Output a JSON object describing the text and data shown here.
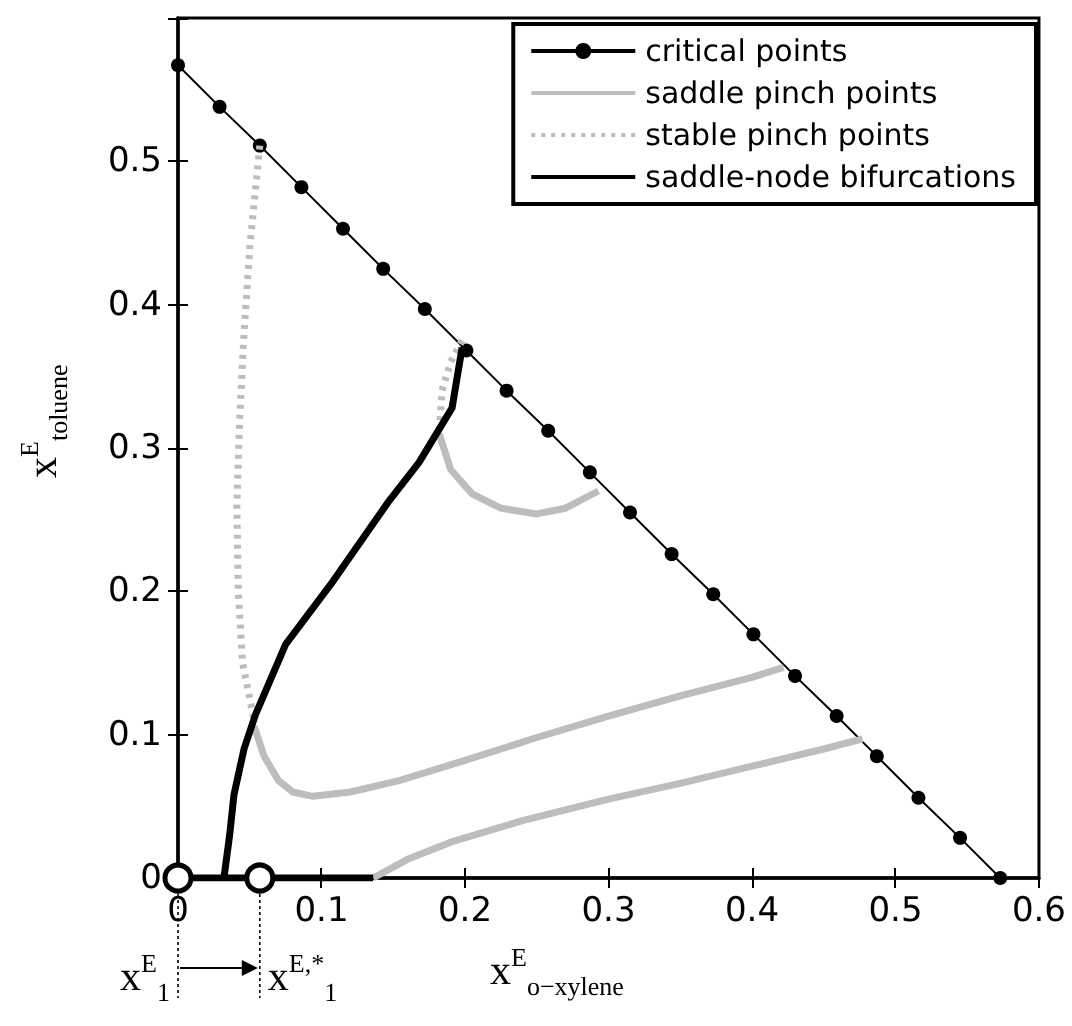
{
  "chart_data": {
    "type": "line",
    "xlabel": "x$^{E}$$_{o−xylene}$",
    "ylabel": "x$^{E}$$_{toluene}$",
    "xlim": [
      0,
      0.6
    ],
    "ylim": [
      0,
      0.6
    ],
    "xticks": [
      0,
      0.1,
      0.2,
      0.3,
      0.4,
      0.5,
      0.6
    ],
    "yticks": [
      0,
      0.1,
      0.2,
      0.3,
      0.4,
      0.5,
      {
        "value": 0.6,
        "label": null
      }
    ],
    "grid": false,
    "legend": "top right",
    "annotations": [
      {
        "text": "x$^{E}$$_{1}$",
        "x": 0,
        "y": 0
      },
      {
        "text": "x$^{E,*}$$_{1}$",
        "x": 0.057,
        "y": 0
      }
    ],
    "series": [
      {
        "name": "critical points",
        "color": "#000000",
        "marker": "circle",
        "line_style": "solid",
        "x": [
          0,
          0.029,
          0.057,
          0.086,
          0.115,
          0.143,
          0.172,
          0.201,
          0.229,
          0.258,
          0.287,
          0.315,
          0.344,
          0.373,
          0.401,
          0.43,
          0.459,
          0.487,
          0.516,
          0.545,
          0.573
        ],
        "values": [
          0.567,
          0.538,
          0.511,
          0.482,
          0.453,
          0.425,
          0.397,
          0.368,
          0.34,
          0.312,
          0.283,
          0.255,
          0.226,
          0.198,
          0.17,
          0.141,
          0.113,
          0.085,
          0.056,
          0.028,
          0
        ]
      },
      {
        "name": "saddle pinch points",
        "color": "#bdbdbd",
        "marker": "none",
        "line_style": "solid",
        "x": [
          0.182,
          0.19,
          0.205,
          0.225,
          0.25,
          0.27,
          0.293,
          null,
          0.053,
          0.06,
          0.07,
          0.08,
          0.094,
          0.12,
          0.154,
          0.2,
          0.25,
          0.3,
          0.35,
          0.4,
          0.422,
          null,
          0.136,
          0.16,
          0.19,
          0.24,
          0.3,
          0.35,
          0.4,
          0.45,
          0.477
        ],
        "values": [
          0.31,
          0.285,
          0.268,
          0.258,
          0.254,
          0.258,
          0.27,
          null,
          0.106,
          0.085,
          0.068,
          0.06,
          0.057,
          0.06,
          0.068,
          0.082,
          0.098,
          0.113,
          0.127,
          0.14,
          0.147,
          null,
          0,
          0.013,
          0.025,
          0.04,
          0.055,
          0.066,
          0.078,
          0.09,
          0.097
        ]
      },
      {
        "name": "stable pinch points",
        "color": "#bdbdbd",
        "marker": "none",
        "line_style": "dotted",
        "x": [
          0.057,
          0.054,
          0.05,
          0.046,
          0.043,
          0.041,
          0.042,
          0.045,
          0.053,
          null,
          0.198,
          0.19,
          0.184,
          0.182
        ],
        "values": [
          0.511,
          0.48,
          0.44,
          0.38,
          0.32,
          0.26,
          0.2,
          0.15,
          0.11,
          null,
          0.375,
          0.36,
          0.34,
          0.31
        ]
      },
      {
        "name": "saddle-node bifurcations",
        "color": "#000000",
        "marker": "none",
        "line_style": "solid",
        "x": [
          0,
          0.136,
          null,
          0.032,
          0.036,
          0.039,
          0.046,
          0.054,
          0.075,
          0.108,
          0.147,
          0.168,
          0.191,
          0.198
        ],
        "values": [
          0,
          0,
          null,
          0,
          0.03,
          0.058,
          0.09,
          0.114,
          0.163,
          0.207,
          0.263,
          0.29,
          0.328,
          0.37
        ]
      },
      {
        "type": "scatter",
        "color": "#ffffff",
        "marker": "circle",
        "x": [
          0,
          0.057
        ],
        "values": [
          0,
          0
        ]
      }
    ]
  }
}
